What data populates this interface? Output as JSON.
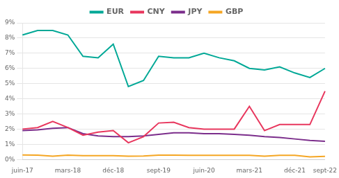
{
  "chart_data": {
    "type": "line",
    "categories": [
      "juin-17",
      null,
      null,
      "mars-18",
      null,
      null,
      "déc-18",
      null,
      null,
      "sept-19",
      null,
      null,
      "juin-20",
      null,
      null,
      "mars-21",
      null,
      null,
      "déc-21",
      null,
      "sept-22"
    ],
    "series": [
      {
        "name": "EUR",
        "color": "#00A896",
        "values": [
          8.2,
          8.5,
          8.5,
          8.2,
          6.8,
          6.7,
          7.6,
          4.8,
          5.2,
          6.8,
          6.7,
          6.7,
          7.0,
          6.7,
          6.5,
          6.0,
          5.9,
          6.1,
          5.7,
          5.4,
          6.0
        ]
      },
      {
        "name": "CNY",
        "color": "#E8365D",
        "values": [
          2.0,
          2.1,
          2.5,
          2.1,
          1.6,
          1.8,
          1.9,
          1.1,
          1.5,
          2.4,
          2.45,
          2.1,
          2.0,
          2.0,
          2.0,
          3.5,
          1.9,
          2.3,
          2.3,
          2.3,
          4.5
        ]
      },
      {
        "name": "JPY",
        "color": "#7B2D8B",
        "values": [
          1.9,
          1.95,
          2.05,
          2.1,
          1.7,
          1.55,
          1.5,
          1.5,
          1.55,
          1.65,
          1.75,
          1.75,
          1.7,
          1.7,
          1.65,
          1.6,
          1.5,
          1.45,
          1.35,
          1.25,
          1.2
        ]
      },
      {
        "name": "GBP",
        "color": "#F5A623",
        "values": [
          0.3,
          0.28,
          0.22,
          0.28,
          0.25,
          0.25,
          0.25,
          0.22,
          0.23,
          0.28,
          0.28,
          0.27,
          0.27,
          0.27,
          0.27,
          0.27,
          0.22,
          0.27,
          0.27,
          0.17,
          0.2
        ]
      }
    ],
    "ylim": [
      0,
      9
    ],
    "yticks": [
      {
        "value": 0,
        "label": "0%"
      },
      {
        "value": 1,
        "label": "1%"
      },
      {
        "value": 2,
        "label": "2%"
      },
      {
        "value": 3,
        "label": "3%"
      },
      {
        "value": 4,
        "label": "4%"
      },
      {
        "value": 5,
        "label": "5%"
      },
      {
        "value": 6,
        "label": "6%"
      },
      {
        "value": 7,
        "label": "7%"
      },
      {
        "value": 8,
        "label": "8%"
      },
      {
        "value": 9,
        "label": "9%"
      }
    ],
    "grid": "y",
    "legend": "top"
  }
}
